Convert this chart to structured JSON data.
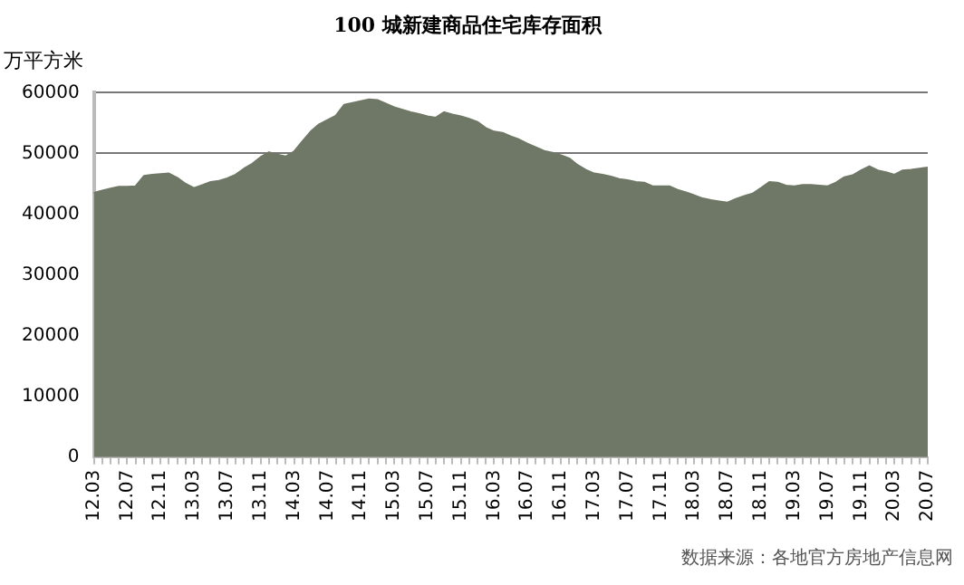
{
  "chart_data": {
    "type": "area",
    "title": "100 城新建商品住宅库存面积",
    "ylabel": "万平方米",
    "annotations": [
      "数据来源：各地官方房地产信息网"
    ],
    "categories": [
      "12.03",
      null,
      null,
      null,
      "12.07",
      null,
      null,
      null,
      "12.11",
      null,
      null,
      null,
      "13.03",
      null,
      null,
      null,
      "13.07",
      null,
      null,
      null,
      "13.11",
      null,
      null,
      null,
      "14.03",
      null,
      null,
      null,
      "14.07",
      null,
      null,
      null,
      "14.11",
      null,
      null,
      null,
      "15.03",
      null,
      null,
      null,
      "15.07",
      null,
      null,
      null,
      "15.11",
      null,
      null,
      null,
      "16.03",
      null,
      null,
      null,
      "16.07",
      null,
      null,
      null,
      "16.11",
      null,
      null,
      null,
      "17.03",
      null,
      null,
      null,
      "17.07",
      null,
      null,
      null,
      "17.11",
      null,
      null,
      null,
      "18.03",
      null,
      null,
      null,
      "18.07",
      null,
      null,
      null,
      "18.11",
      null,
      null,
      null,
      "19.03",
      null,
      null,
      null,
      "19.07",
      null,
      null,
      null,
      "19.11",
      null,
      null,
      null,
      "20.03",
      null,
      null,
      null,
      "20.07"
    ],
    "series": [
      {
        "color": "#6f7866",
        "values": [
          43500,
          43900,
          44200,
          44500,
          44500,
          44600,
          46300,
          46500,
          46600,
          46700,
          46000,
          45000,
          44300,
          44800,
          45300,
          45500,
          45900,
          46500,
          47500,
          48300,
          49400,
          50200,
          49800,
          49500,
          50300,
          52000,
          53600,
          54800,
          55500,
          56200,
          58000,
          58300,
          58600,
          58900,
          58800,
          58200,
          57600,
          57200,
          56800,
          56500,
          56100,
          55900,
          56800,
          56400,
          56100,
          55700,
          55200,
          54200,
          53600,
          53400,
          52800,
          52300,
          51600,
          51000,
          50400,
          50100,
          49700,
          49200,
          48100,
          47300,
          46700,
          46500,
          46200,
          45800,
          45600,
          45300,
          45200,
          44600,
          44600,
          44600,
          44000,
          43600,
          43100,
          42600,
          42300,
          42100,
          41900,
          42500,
          43000,
          43400,
          44300,
          45300,
          45200,
          44700,
          44600,
          44800,
          44800,
          44700,
          44600,
          45200,
          46100,
          46400,
          47200,
          47900,
          47200,
          46900,
          46500,
          47200,
          47300,
          47500,
          47700
        ]
      }
    ],
    "ylim": [
      0,
      60000
    ],
    "yticks": [
      0,
      10000,
      20000,
      30000,
      40000,
      50000,
      60000
    ],
    "grid": "y",
    "legend": false,
    "marker": "none"
  }
}
